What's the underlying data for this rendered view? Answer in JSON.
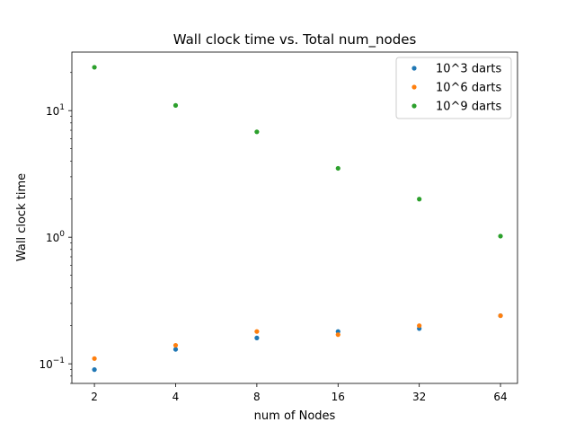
{
  "chart_data": {
    "type": "scatter",
    "title": "Wall clock time vs. Total num_nodes",
    "xlabel": "num of Nodes",
    "ylabel": "Wall clock time",
    "xscale": "log2",
    "yscale": "log10",
    "x": [
      2,
      4,
      8,
      16,
      32,
      64
    ],
    "x_tick_labels": [
      "2",
      "4",
      "8",
      "16",
      "32",
      "64"
    ],
    "xlim": [
      1.65,
      74
    ],
    "ylim": [
      0.07,
      29
    ],
    "y_ticks": [
      {
        "value": 0.1,
        "base": "10",
        "exp": "−1"
      },
      {
        "value": 1,
        "base": "10",
        "exp": "0"
      },
      {
        "value": 10,
        "base": "10",
        "exp": "1"
      }
    ],
    "grid": false,
    "legend_position": "top-right",
    "series": [
      {
        "name": "10^3 darts",
        "color": "#1f77b4",
        "values": [
          0.09,
          0.13,
          0.16,
          0.18,
          0.19,
          0.24
        ]
      },
      {
        "name": "10^6 darts",
        "color": "#ff7f0e",
        "values": [
          0.11,
          0.14,
          0.18,
          0.17,
          0.2,
          0.24
        ]
      },
      {
        "name": "10^9 darts",
        "color": "#2ca02c",
        "values": [
          22,
          11,
          6.8,
          3.5,
          2.0,
          1.02
        ]
      }
    ]
  }
}
